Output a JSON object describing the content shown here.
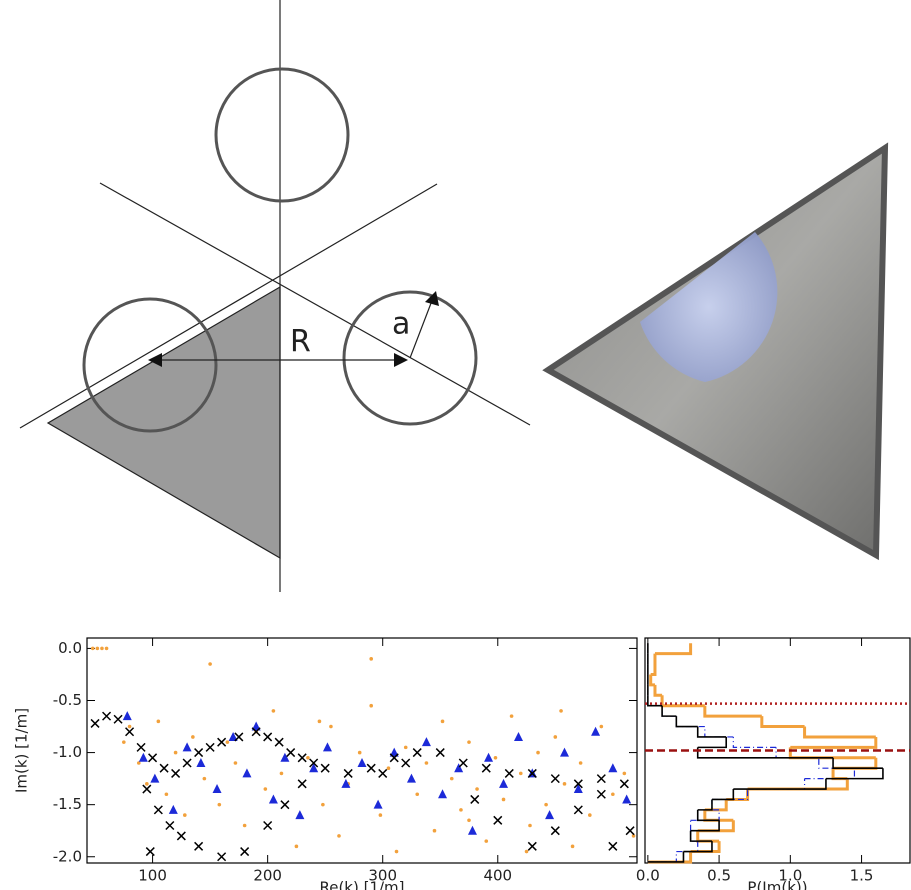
{
  "diagram": {
    "labels": [
      "R",
      "a"
    ]
  },
  "chart_data": [
    {
      "type": "scatter",
      "xlabel": "Re(k) [1/m]",
      "ylabel": "Im(k) [1/m]",
      "xlim": [
        43,
        521
      ],
      "xticks": [
        100,
        200,
        300,
        400
      ],
      "ylim": [
        -2.06,
        0.1
      ],
      "yticks": [
        {
          "value": 0,
          "label": "0.0"
        },
        -0.5,
        {
          "value": -1,
          "label": "-1.0"
        },
        -1.5,
        {
          "value": -2,
          "label": "-2.0"
        }
      ],
      "series": [
        {
          "marker": "dot",
          "color": "#f2a13c",
          "x": [
            48,
            52,
            56,
            60,
            75,
            80,
            88,
            95,
            105,
            112,
            120,
            128,
            135,
            145,
            150,
            158,
            165,
            172,
            180,
            190,
            198,
            205,
            212,
            225,
            235,
            248,
            255,
            262,
            270,
            280,
            290,
            298,
            305,
            312,
            320,
            330,
            338,
            345,
            352,
            360,
            368,
            375,
            382,
            390,
            398,
            405,
            412,
            420,
            428,
            435,
            442,
            450,
            458,
            465,
            472,
            480,
            490,
            500,
            510,
            518,
            290,
            245,
            375,
            425,
            455
          ],
          "y": [
            0,
            0,
            0,
            0,
            -0.9,
            -0.75,
            -1.1,
            -1.3,
            -0.7,
            -1.4,
            -1.0,
            -1.6,
            -0.85,
            -1.25,
            -0.15,
            -1.5,
            -0.9,
            -1.1,
            -1.7,
            -0.8,
            -1.35,
            -0.6,
            -1.2,
            -1.9,
            -1.05,
            -1.5,
            -0.75,
            -1.8,
            -1.3,
            -1.0,
            -0.1,
            -1.6,
            -1.15,
            -1.95,
            -0.95,
            -1.4,
            -1.1,
            -1.75,
            -0.7,
            -1.25,
            -1.55,
            -0.9,
            -1.35,
            -1.85,
            -1.05,
            -1.45,
            -0.65,
            -1.2,
            -1.7,
            -1.0,
            -1.5,
            -0.85,
            -1.3,
            -1.9,
            -1.1,
            -1.6,
            -0.75,
            -1.4,
            -1.2,
            -1.8,
            -0.55,
            -0.7,
            -1.65,
            -1.95,
            -0.6
          ]
        },
        {
          "marker": "triangle",
          "color": "#1c2ad8",
          "x": [
            78,
            92,
            102,
            118,
            130,
            142,
            156,
            170,
            182,
            190,
            205,
            215,
            228,
            240,
            252,
            268,
            282,
            296,
            310,
            325,
            338,
            352,
            366,
            378,
            392,
            405,
            418,
            430,
            445,
            458,
            470,
            485,
            500,
            512
          ],
          "y": [
            -0.65,
            -1.05,
            -1.25,
            -1.55,
            -0.95,
            -1.1,
            -1.35,
            -0.85,
            -1.2,
            -0.75,
            -1.45,
            -1.05,
            -1.6,
            -1.15,
            -0.95,
            -1.3,
            -1.1,
            -1.5,
            -1.0,
            -1.25,
            -0.9,
            -1.4,
            -1.15,
            -1.75,
            -1.05,
            -1.3,
            -0.85,
            -1.2,
            -1.6,
            -1.0,
            -1.35,
            -0.8,
            -1.15,
            -1.45
          ]
        },
        {
          "marker": "x",
          "color": "#000000",
          "x": [
            50,
            60,
            70,
            80,
            90,
            100,
            110,
            120,
            130,
            140,
            150,
            160,
            175,
            190,
            200,
            210,
            220,
            230,
            240,
            250,
            270,
            290,
            310,
            330,
            350,
            370,
            390,
            410,
            430,
            450,
            470,
            490,
            510,
            95,
            105,
            115,
            125,
            98,
            140,
            160,
            180,
            200,
            215,
            230,
            300,
            320,
            380,
            400,
            430,
            450,
            470,
            490,
            500,
            515
          ],
          "y": [
            -0.72,
            -0.65,
            -0.68,
            -0.8,
            -0.95,
            -1.05,
            -1.15,
            -1.2,
            -1.1,
            -1.0,
            -0.95,
            -0.9,
            -0.85,
            -0.8,
            -0.85,
            -0.9,
            -1.0,
            -1.05,
            -1.1,
            -1.15,
            -1.2,
            -1.15,
            -1.05,
            -1.0,
            -1.0,
            -1.1,
            -1.15,
            -1.2,
            -1.2,
            -1.25,
            -1.3,
            -1.25,
            -1.3,
            -1.35,
            -1.55,
            -1.7,
            -1.8,
            -1.95,
            -1.9,
            -2.0,
            -1.95,
            -1.7,
            -1.5,
            -1.3,
            -1.2,
            -1.1,
            -1.45,
            -1.65,
            -1.9,
            -1.75,
            -1.55,
            -1.4,
            -1.9,
            -1.75
          ]
        }
      ]
    },
    {
      "type": "histogram",
      "orientation": "horizontal",
      "xlabel": "P(Im(k))",
      "xlim": [
        -0.02,
        1.84
      ],
      "xticks": [
        {
          "value": 0,
          "label": "0.0"
        },
        0.5,
        {
          "value": 1,
          "label": "1.0"
        },
        1.5
      ],
      "ylim": [
        -2.06,
        0.1
      ],
      "bins": [
        -2.05,
        -1.95,
        -1.85,
        -1.75,
        -1.65,
        -1.55,
        -1.45,
        -1.35,
        -1.25,
        -1.15,
        -1.05,
        -0.95,
        -0.85,
        -0.75,
        -0.65,
        -0.55,
        -0.45,
        -0.35,
        -0.25,
        -0.15,
        -0.05,
        0.05
      ],
      "series": [
        {
          "color": "#f2a13c",
          "style": "solid",
          "width": 3,
          "values": [
            0.3,
            0.5,
            0.35,
            0.6,
            0.4,
            0.55,
            0.7,
            1.4,
            1.3,
            1.6,
            1.0,
            1.6,
            1.1,
            0.8,
            0.4,
            0.1,
            0.05,
            0.02,
            0.05,
            0.05,
            0.3
          ]
        },
        {
          "color": "#1c2ad8",
          "style": "dashdot",
          "width": 1.2,
          "values": [
            0.2,
            0.35,
            0.3,
            0.3,
            0.5,
            0.45,
            0.7,
            1.1,
            1.45,
            1.2,
            0.9,
            0.6,
            0.4,
            0.2,
            0.1,
            0,
            0,
            0,
            0,
            0,
            0
          ]
        },
        {
          "color": "#000000",
          "style": "solid",
          "width": 1.6,
          "values": [
            0.25,
            0.45,
            0.3,
            0.5,
            0.35,
            0.45,
            0.6,
            1.25,
            1.65,
            1.3,
            0.35,
            0.55,
            0.35,
            0.2,
            0.1,
            0,
            0,
            0,
            0,
            0,
            0
          ]
        }
      ],
      "hlines": [
        {
          "value": -0.53,
          "color": "#b02020",
          "style": "dotted"
        },
        {
          "value": -0.98,
          "color": "#9a1010",
          "style": "dashed"
        }
      ]
    }
  ]
}
